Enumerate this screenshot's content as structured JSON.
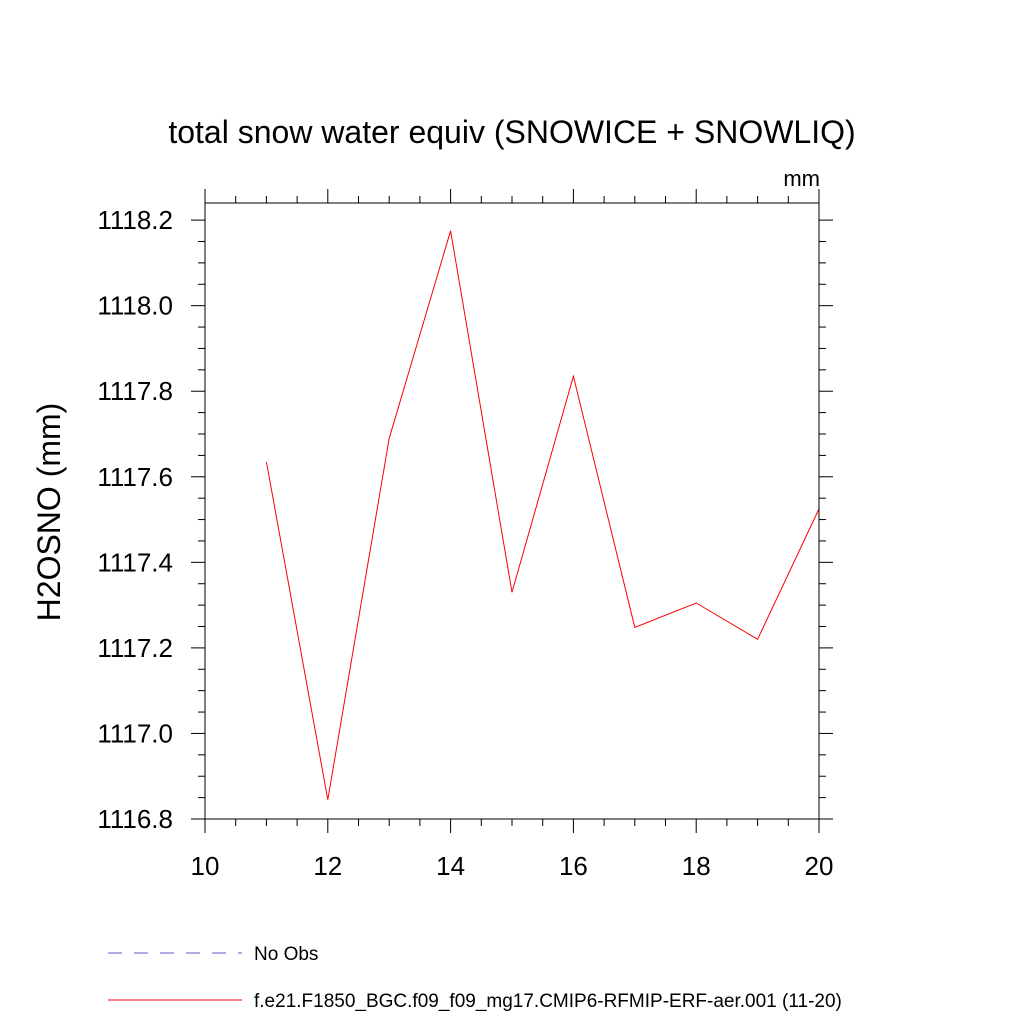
{
  "chart_data": {
    "type": "line",
    "title": "total snow water equiv (SNOWICE + SNOWLIQ)",
    "units": "mm",
    "ylabel": "H2OSNO  (mm)",
    "xlabel": "",
    "xlim": [
      10,
      20
    ],
    "ylim": [
      1116.8,
      1118.24
    ],
    "x_ticks": [
      10,
      12,
      14,
      16,
      18,
      20
    ],
    "x_tick_labels": [
      "10",
      "12",
      "14",
      "16",
      "18",
      "20"
    ],
    "y_ticks": [
      1116.8,
      1117.0,
      1117.2,
      1117.4,
      1117.6,
      1117.8,
      1118.0,
      1118.2
    ],
    "y_tick_labels": [
      "1116.8",
      "1117.0",
      "1117.2",
      "1117.4",
      "1117.6",
      "1117.8",
      "1118.0",
      "1118.2"
    ],
    "grid": false,
    "legend_position": "bottom",
    "series": [
      {
        "name": "No Obs",
        "color": "#6a5acd",
        "dash": "dashed",
        "x": [],
        "y": []
      },
      {
        "name": "f.e21.F1850_BGC.f09_f09_mg17.CMIP6-RFMIP-ERF-aer.001 (11-20)",
        "color": "#ff0000",
        "dash": "solid",
        "x": [
          11,
          12,
          13,
          14,
          15,
          16,
          17,
          18,
          19,
          20
        ],
        "y": [
          1117.635,
          1116.845,
          1117.69,
          1118.175,
          1117.33,
          1117.835,
          1117.248,
          1117.305,
          1117.22,
          1117.525
        ]
      }
    ]
  }
}
